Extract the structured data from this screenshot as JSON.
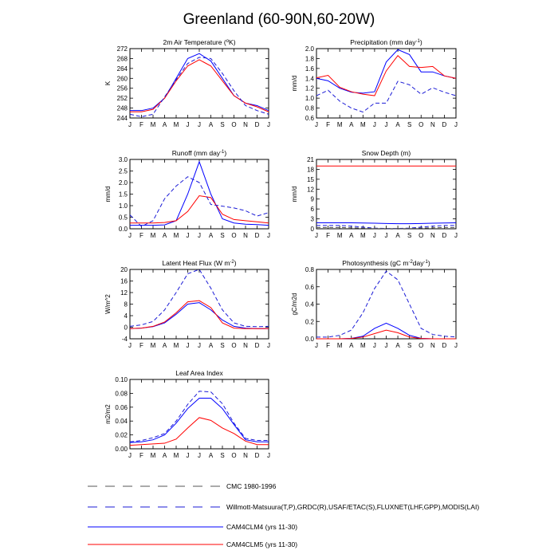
{
  "title": "Greenland (60-90N,60-20W)",
  "months": [
    "J",
    "F",
    "M",
    "A",
    "M",
    "J",
    "J",
    "A",
    "S",
    "O",
    "N",
    "D",
    "J"
  ],
  "colors": {
    "cam4": "#0000ff",
    "cam5": "#ff0000",
    "obs": "#1b1bd6",
    "cmc": "#555555"
  },
  "legend": [
    {
      "label": "CMC 1980-1996",
      "style": "dashed",
      "color": "#555555"
    },
    {
      "label": "Willmott-Matsuura(T,P),GRDC(R),USAF/ETAC(S),FLUXNET(LHF,GPP),MODIS(LAI)",
      "style": "dashed",
      "color": "#1b1bd6"
    },
    {
      "label": "CAM4CLM4 (yrs 11-30)",
      "style": "solid",
      "color": "#0000ff"
    },
    {
      "label": "CAM4CLM5 (yrs 11-30)",
      "style": "solid",
      "color": "#ff0000"
    }
  ],
  "chart_data": [
    {
      "type": "line",
      "title_base": "2m Air Temperature (",
      "title_sup": "o",
      "title_tail": "K)",
      "ylabel": "K",
      "ylim": [
        244,
        272
      ],
      "yticks": [
        244,
        248,
        252,
        256,
        260,
        264,
        268,
        272
      ],
      "series": [
        {
          "name": "CAM4CLM4",
          "key": "cam4",
          "dashed": false,
          "values": [
            247,
            247,
            248,
            252,
            260,
            268,
            270,
            267,
            260,
            253,
            250,
            249,
            247
          ]
        },
        {
          "name": "CAM4CLM5",
          "key": "cam5",
          "dashed": false,
          "values": [
            246.5,
            246.5,
            247.5,
            252,
            259,
            265,
            267.5,
            265,
            259,
            253,
            250,
            248.5,
            246.5
          ]
        },
        {
          "name": "Willmott-Matsuura",
          "key": "obs",
          "dashed": true,
          "values": [
            245.5,
            244.5,
            245.5,
            252.5,
            259.5,
            266,
            268.5,
            268,
            262,
            255,
            249,
            247,
            245.5
          ]
        }
      ]
    },
    {
      "type": "line",
      "title_base": "Precipitation (mm day",
      "title_sup": "-1",
      "title_tail": ")",
      "ylabel": "mm/d",
      "ylim": [
        0.6,
        2.0
      ],
      "yticks": [
        0.6,
        0.8,
        1.0,
        1.2,
        1.4,
        1.6,
        1.8,
        2.0
      ],
      "series": [
        {
          "name": "CAM4CLM4",
          "key": "cam4",
          "dashed": false,
          "values": [
            1.4,
            1.35,
            1.2,
            1.12,
            1.1,
            1.13,
            1.73,
            1.98,
            1.88,
            1.53,
            1.53,
            1.45,
            1.4
          ]
        },
        {
          "name": "CAM4CLM5",
          "key": "cam5",
          "dashed": false,
          "values": [
            1.41,
            1.46,
            1.22,
            1.13,
            1.08,
            1.05,
            1.55,
            1.86,
            1.64,
            1.62,
            1.64,
            1.45,
            1.4
          ]
        },
        {
          "name": "Willmott-Matsuura",
          "key": "obs",
          "dashed": true,
          "values": [
            1.05,
            1.16,
            0.94,
            0.8,
            0.72,
            0.9,
            0.9,
            1.34,
            1.27,
            1.08,
            1.21,
            1.12,
            1.05
          ]
        }
      ]
    },
    {
      "type": "line",
      "title_base": "Runoff (mm day",
      "title_sup": "-1",
      "title_tail": ")",
      "ylabel": "mm/d",
      "ylim": [
        0.0,
        3.0
      ],
      "yticks": [
        0.0,
        0.5,
        1.0,
        1.5,
        2.0,
        2.5,
        3.0
      ],
      "series": [
        {
          "name": "CAM4CLM4",
          "key": "cam4",
          "dashed": false,
          "values": [
            0.15,
            0.15,
            0.15,
            0.17,
            0.35,
            1.5,
            2.9,
            1.5,
            0.43,
            0.25,
            0.2,
            0.18,
            0.15
          ]
        },
        {
          "name": "CAM4CLM5",
          "key": "cam5",
          "dashed": false,
          "values": [
            0.25,
            0.25,
            0.25,
            0.27,
            0.35,
            0.75,
            1.43,
            1.35,
            0.63,
            0.4,
            0.35,
            0.3,
            0.25
          ]
        },
        {
          "name": "GRDC",
          "key": "obs",
          "dashed": true,
          "values": [
            0.6,
            0.1,
            0.35,
            1.3,
            1.85,
            2.25,
            2.0,
            1.05,
            0.98,
            0.9,
            0.78,
            0.55,
            0.7
          ]
        }
      ]
    },
    {
      "type": "line",
      "title_base": "Snow Depth (m)",
      "title_sup": "",
      "title_tail": "",
      "ylabel": "mm/d",
      "ylim": [
        0,
        21
      ],
      "yticks": [
        0,
        3,
        6,
        9,
        12,
        15,
        18,
        21
      ],
      "series": [
        {
          "name": "CAM4CLM4",
          "key": "cam4",
          "dashed": false,
          "values": [
            1.8,
            1.8,
            1.8,
            1.8,
            1.75,
            1.7,
            1.6,
            1.55,
            1.55,
            1.6,
            1.7,
            1.75,
            1.8
          ]
        },
        {
          "name": "CAM4CLM5",
          "key": "cam5",
          "dashed": false,
          "values": [
            19,
            19,
            19,
            19,
            19,
            19,
            19,
            19,
            19,
            19,
            19,
            19,
            19
          ]
        },
        {
          "name": "USAF/ETAC",
          "key": "obs",
          "dashed": true,
          "values": [
            1.0,
            1.0,
            1.0,
            0.8,
            0.5,
            0.2,
            0.1,
            0.1,
            0.2,
            0.5,
            0.8,
            1.0,
            1.0
          ]
        },
        {
          "name": "CMC 1980-1996",
          "key": "cmc",
          "dashed": true,
          "values": [
            0.4,
            0.4,
            0.4,
            0.3,
            0.2,
            0.1,
            0.05,
            0.05,
            0.1,
            0.2,
            0.3,
            0.4,
            0.4
          ]
        }
      ]
    },
    {
      "type": "line",
      "title_base": "Latent Heat Flux (W m",
      "title_sup": "-2",
      "title_tail": ")",
      "ylabel": "W/m^2",
      "ylim": [
        -4,
        20
      ],
      "yticks": [
        -4,
        0,
        4,
        8,
        12,
        16,
        20
      ],
      "series": [
        {
          "name": "CAM4CLM4",
          "key": "cam4",
          "dashed": false,
          "values": [
            -0.5,
            -0.3,
            0.2,
            1.5,
            4.5,
            8.0,
            8.5,
            6.0,
            2.5,
            0.3,
            -0.3,
            -0.5,
            -0.5
          ]
        },
        {
          "name": "CAM4CLM5",
          "key": "cam5",
          "dashed": false,
          "values": [
            -0.5,
            -0.3,
            0.3,
            1.8,
            5.0,
            8.8,
            9.2,
            6.8,
            1.5,
            -0.3,
            -0.5,
            -0.5,
            -0.5
          ]
        },
        {
          "name": "FLUXNET",
          "key": "obs",
          "dashed": true,
          "values": [
            0.3,
            0.8,
            2.0,
            6.0,
            12.0,
            18.5,
            20.0,
            13.5,
            6.0,
            1.5,
            0.3,
            0.2,
            0.3
          ]
        }
      ]
    },
    {
      "type": "line",
      "title_base": "Photosynthesis (gC m",
      "title_sup": "-2",
      "title_tail": "day",
      "title_sup2": "-1",
      "title_tail2": ")",
      "ylabel": "gC/m2d",
      "ylim": [
        0.0,
        0.8
      ],
      "yticks": [
        0.0,
        0.2,
        0.4,
        0.6,
        0.8
      ],
      "series": [
        {
          "name": "CAM4CLM4",
          "key": "cam4",
          "dashed": false,
          "values": [
            0.0,
            0.0,
            0.0,
            0.005,
            0.03,
            0.12,
            0.18,
            0.12,
            0.04,
            0.005,
            0.0,
            0.0,
            0.0
          ]
        },
        {
          "name": "CAM4CLM5",
          "key": "cam5",
          "dashed": false,
          "values": [
            0.0,
            0.0,
            0.0,
            0.003,
            0.02,
            0.06,
            0.1,
            0.07,
            0.02,
            0.003,
            0.0,
            0.0,
            0.0
          ]
        },
        {
          "name": "FLUXNET",
          "key": "obs",
          "dashed": true,
          "values": [
            0.02,
            0.02,
            0.04,
            0.1,
            0.3,
            0.58,
            0.78,
            0.68,
            0.4,
            0.12,
            0.05,
            0.03,
            0.02
          ]
        }
      ]
    },
    {
      "type": "line",
      "title_base": "Leaf Area Index",
      "title_sup": "",
      "title_tail": "",
      "ylabel": "m2/m2",
      "ylim": [
        0.0,
        0.1
      ],
      "yticks": [
        0.0,
        0.02,
        0.04,
        0.06,
        0.08,
        0.1
      ],
      "tick_format": [
        "0.00",
        "0.02",
        "0.04",
        "0.06",
        "0.08",
        "0.10"
      ],
      "series": [
        {
          "name": "CAM4CLM4",
          "key": "cam4",
          "dashed": false,
          "values": [
            0.009,
            0.01,
            0.013,
            0.02,
            0.037,
            0.058,
            0.073,
            0.073,
            0.058,
            0.035,
            0.013,
            0.01,
            0.01
          ]
        },
        {
          "name": "CAM4CLM5",
          "key": "cam5",
          "dashed": false,
          "values": [
            0.005,
            0.006,
            0.007,
            0.008,
            0.014,
            0.03,
            0.045,
            0.041,
            0.03,
            0.022,
            0.011,
            0.006,
            0.006
          ]
        },
        {
          "name": "MODIS",
          "key": "obs",
          "dashed": true,
          "values": [
            0.01,
            0.012,
            0.016,
            0.022,
            0.04,
            0.064,
            0.083,
            0.082,
            0.065,
            0.037,
            0.015,
            0.012,
            0.012
          ]
        }
      ]
    }
  ]
}
